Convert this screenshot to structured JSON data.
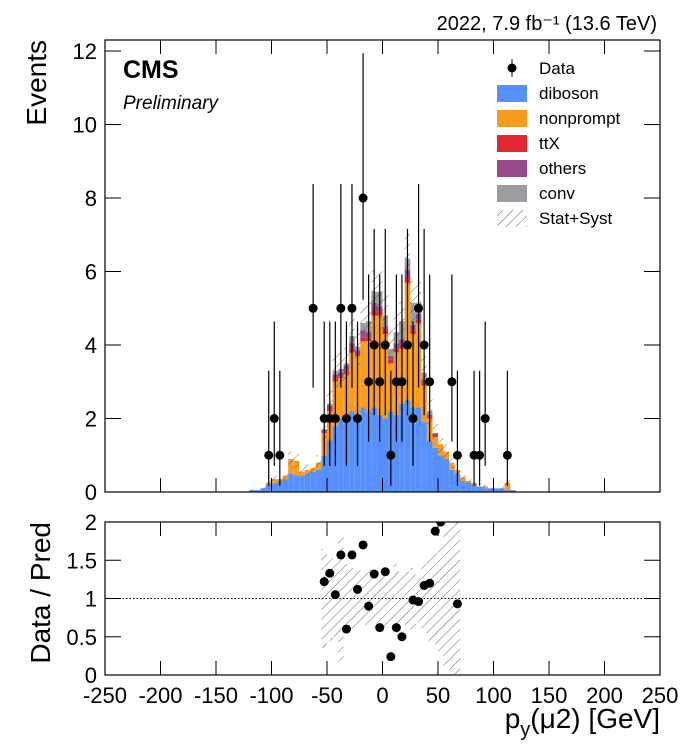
{
  "chart_data": [
    {
      "type": "histogram",
      "lumi": "2022, 7.9 fb⁻¹ (13.6 TeV)",
      "cms": "CMS",
      "preliminary": "Preliminary",
      "y_label": "Events",
      "xlim": [
        -250,
        250
      ],
      "ylim": [
        0,
        12.3
      ],
      "xticks": [
        -250,
        -200,
        -150,
        -100,
        -50,
        0,
        50,
        100,
        150,
        200,
        250
      ],
      "yticks": [
        0,
        2,
        4,
        6,
        8,
        10,
        12
      ],
      "bins": [
        -120,
        -115,
        -110,
        -105,
        -100,
        -95,
        -90,
        -85,
        -80,
        -75,
        -70,
        -65,
        -60,
        -55,
        -50,
        -45,
        -40,
        -35,
        -30,
        -25,
        -20,
        -15,
        -10,
        -5,
        0,
        5,
        10,
        15,
        20,
        25,
        30,
        35,
        40,
        45,
        50,
        55,
        60,
        65,
        70,
        75,
        80,
        85,
        90,
        95,
        100,
        105,
        110,
        115,
        120
      ],
      "series": [
        {
          "name": "diboson",
          "color": "#5790fc",
          "values": [
            0.05,
            0.05,
            0.1,
            0.2,
            0.25,
            0.3,
            0.35,
            0.5,
            0.45,
            0.45,
            0.5,
            0.55,
            0.6,
            1.0,
            1.4,
            1.8,
            2.0,
            2.0,
            2.2,
            2.1,
            2.3,
            2.2,
            2.3,
            2.1,
            2.0,
            2.2,
            2.1,
            2.4,
            2.5,
            2.3,
            2.3,
            1.9,
            1.4,
            1.2,
            1.0,
            0.9,
            0.6,
            0.5,
            0.3,
            0.25,
            0.2,
            0.15,
            0.1,
            0.1,
            0.1,
            0.1,
            0.05,
            0.05
          ]
        },
        {
          "name": "nonprompt",
          "color": "#f89c20",
          "values": [
            0,
            0,
            0,
            0.05,
            0.1,
            0.05,
            0.1,
            0.4,
            0.4,
            0.1,
            0.1,
            0.1,
            0.2,
            0.6,
            0.8,
            1.2,
            1.1,
            1.2,
            1.6,
            1.6,
            1.8,
            1.9,
            2.5,
            2.7,
            2.3,
            1.3,
            1.7,
            1.5,
            3.2,
            2.0,
            2.3,
            1.0,
            0.6,
            0.3,
            0.3,
            0.2,
            0.2,
            0.1,
            0.1,
            0.05,
            0.05,
            0,
            0.05,
            0,
            0,
            0,
            0.2,
            0
          ]
        },
        {
          "name": "ttX",
          "color": "#e42536",
          "values": [
            0,
            0,
            0,
            0,
            0,
            0,
            0,
            0,
            0,
            0,
            0,
            0,
            0,
            0.05,
            0.05,
            0.1,
            0.05,
            0.1,
            0.1,
            0.05,
            0.1,
            0.1,
            0.15,
            0.1,
            0.1,
            0.1,
            0.1,
            0.1,
            0.15,
            0.1,
            0.1,
            0.05,
            0.05,
            0.05,
            0,
            0,
            0,
            0,
            0,
            0,
            0,
            0,
            0,
            0,
            0,
            0,
            0,
            0
          ]
        },
        {
          "name": "others",
          "color": "#964a8b",
          "values": [
            0,
            0,
            0,
            0,
            0,
            0,
            0,
            0,
            0,
            0,
            0,
            0,
            0,
            0.05,
            0.1,
            0.1,
            0.1,
            0.15,
            0.15,
            0.1,
            0.2,
            0.15,
            0.2,
            0.15,
            0.1,
            0.1,
            0.15,
            0.15,
            0.2,
            0.15,
            0.15,
            0.1,
            0.05,
            0.05,
            0,
            0,
            0,
            0,
            0,
            0,
            0,
            0,
            0,
            0,
            0,
            0,
            0,
            0
          ]
        },
        {
          "name": "conv",
          "color": "#9c9ca1",
          "values": [
            0,
            0,
            0,
            0,
            0,
            0,
            0,
            0,
            0,
            0,
            0,
            0,
            0,
            0,
            0.05,
            0.1,
            0.1,
            0.05,
            0.2,
            0.1,
            0.2,
            0.3,
            0.3,
            0.4,
            0.3,
            0.2,
            0.3,
            0.5,
            0.3,
            0.6,
            0.3,
            0.2,
            0.1,
            0,
            0,
            0,
            0,
            0,
            0,
            0,
            0,
            0,
            0,
            0,
            0,
            0,
            0,
            0
          ]
        }
      ],
      "unc": {
        "name": "Stat+Syst",
        "values": [
          0.03,
          0.03,
          0.05,
          0.08,
          0.1,
          0.1,
          0.12,
          0.2,
          0.2,
          0.15,
          0.15,
          0.15,
          0.2,
          0.3,
          0.35,
          0.45,
          0.45,
          0.45,
          0.5,
          0.5,
          0.55,
          0.55,
          0.6,
          0.65,
          0.6,
          0.5,
          0.55,
          0.55,
          0.7,
          0.6,
          0.6,
          0.45,
          0.35,
          0.25,
          0.25,
          0.2,
          0.15,
          0.12,
          0.1,
          0.08,
          0.07,
          0.05,
          0.05,
          0.05,
          0.05,
          0.05,
          0.1,
          0.03
        ]
      },
      "data": {
        "name": "Data",
        "x": [
          -102.5,
          -97.5,
          -92.5,
          -62.5,
          -52.5,
          -47.5,
          -42.5,
          -37.5,
          -32.5,
          -27.5,
          -22.5,
          -17.5,
          -12.5,
          -7.5,
          -2.5,
          2.5,
          7.5,
          12.5,
          17.5,
          22.5,
          27.5,
          32.5,
          37.5,
          42.5,
          62.5,
          67.5,
          82.5,
          87.5,
          92.5,
          112.5
        ],
        "values": [
          1,
          2,
          1,
          5,
          2,
          2,
          2,
          5,
          2,
          5,
          2,
          8,
          3,
          4,
          3,
          4,
          1,
          3,
          3,
          4,
          2,
          5,
          4,
          3,
          3,
          1,
          1,
          1,
          2,
          1
        ],
        "err_low": [
          0.83,
          1.29,
          0.83,
          2.16,
          1.29,
          1.29,
          1.29,
          2.16,
          1.29,
          2.16,
          1.29,
          2.77,
          1.63,
          1.91,
          1.63,
          1.91,
          0.83,
          1.63,
          1.63,
          1.91,
          1.29,
          2.16,
          1.91,
          1.63,
          1.63,
          0.83,
          0.83,
          0.83,
          1.29,
          0.83
        ],
        "err_high": [
          2.3,
          2.64,
          2.3,
          3.38,
          2.64,
          2.64,
          2.64,
          3.38,
          2.64,
          3.38,
          2.64,
          3.94,
          2.92,
          3.16,
          2.92,
          3.16,
          2.3,
          2.92,
          2.92,
          3.16,
          2.64,
          3.38,
          3.16,
          2.92,
          2.92,
          2.3,
          2.3,
          2.3,
          2.64,
          2.3
        ]
      }
    },
    {
      "type": "scatter",
      "y_label": "Data / Pred",
      "x_label": [
        "p",
        "y",
        "(μ2) [GeV]"
      ],
      "xlim": [
        -250,
        250
      ],
      "ylim": [
        0,
        2
      ],
      "xticks": [
        -250,
        -200,
        -150,
        -100,
        -50,
        0,
        50,
        100,
        150,
        200,
        250
      ],
      "yticks": [
        0,
        0.5,
        1,
        1.5,
        2
      ],
      "reference": 1,
      "x": [
        -52.5,
        -47.5,
        -42.5,
        -37.5,
        -32.5,
        -27.5,
        -22.5,
        -17.5,
        -12.5,
        -7.5,
        -2.5,
        2.5,
        7.5,
        12.5,
        17.5,
        27.5,
        32.5,
        37.5,
        42.5,
        47.5,
        52.5,
        67.5
      ],
      "values": [
        1.22,
        1.33,
        1.05,
        1.57,
        0.6,
        1.57,
        1.12,
        1.7,
        0.9,
        1.32,
        0.62,
        1.35,
        0.24,
        0.62,
        0.5,
        0.98,
        0.96,
        1.17,
        1.2,
        1.88,
        2.0,
        0.93
      ],
      "band_x": [
        -52.5,
        -47.5,
        -42.5,
        -37.5,
        -32.5,
        -27.5,
        -22.5,
        -17.5,
        -12.5,
        -7.5,
        -2.5,
        2.5,
        7.5,
        12.5,
        17.5,
        22.5,
        27.5,
        32.5,
        37.5,
        42.5,
        47.5,
        52.5,
        57.5,
        62.5,
        67.5
      ],
      "band_low": [
        0.35,
        0.45,
        0.5,
        0.15,
        0.55,
        0.6,
        0.6,
        0.65,
        0.6,
        0.7,
        0.65,
        0.6,
        0.7,
        0.55,
        0.7,
        0.65,
        0.6,
        0.7,
        0.55,
        0.45,
        0.4,
        0.3,
        0.1,
        0.05,
        0.0
      ],
      "band_high": [
        1.65,
        1.55,
        1.5,
        1.85,
        1.45,
        1.4,
        1.4,
        1.35,
        1.4,
        1.3,
        1.35,
        1.4,
        1.3,
        1.45,
        1.3,
        1.35,
        1.4,
        1.3,
        1.45,
        1.55,
        1.6,
        1.7,
        1.9,
        1.95,
        2.0
      ]
    }
  ]
}
